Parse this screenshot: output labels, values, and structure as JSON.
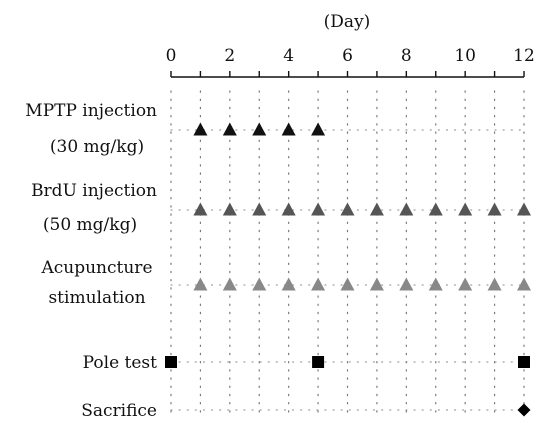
{
  "unit_label": "(Day)",
  "axis": {
    "min": 0,
    "max": 12,
    "ticks": [
      0,
      1,
      2,
      3,
      4,
      5,
      6,
      7,
      8,
      9,
      10,
      11,
      12
    ],
    "tick_labels": [
      "0",
      "2",
      "4",
      "6",
      "8",
      "10",
      "12"
    ]
  },
  "rows": [
    {
      "id": "mptp",
      "label_lines": [
        "MPTP injection",
        "(30 mg/kg)"
      ],
      "marker": "triangle",
      "color": "#111111",
      "days": [
        1,
        2,
        3,
        4,
        5
      ]
    },
    {
      "id": "brdu",
      "label_lines": [
        "BrdU injection",
        "(50 mg/kg)"
      ],
      "marker": "triangle",
      "color": "#555555",
      "days": [
        1,
        2,
        3,
        4,
        5,
        6,
        7,
        8,
        9,
        10,
        11,
        12
      ]
    },
    {
      "id": "acupuncture",
      "label_lines": [
        "Acupuncture",
        "stimulation"
      ],
      "marker": "triangle",
      "color": "#888888",
      "days": [
        1,
        2,
        3,
        4,
        5,
        6,
        7,
        8,
        9,
        10,
        11,
        12
      ]
    },
    {
      "id": "pole-test",
      "label_lines": [
        "Pole test"
      ],
      "marker": "square",
      "color": "#000000",
      "days": [
        0,
        5,
        12
      ]
    },
    {
      "id": "sacrifice",
      "label_lines": [
        "Sacrifice"
      ],
      "marker": "diamond",
      "color": "#000000",
      "days": [
        12
      ]
    }
  ]
}
